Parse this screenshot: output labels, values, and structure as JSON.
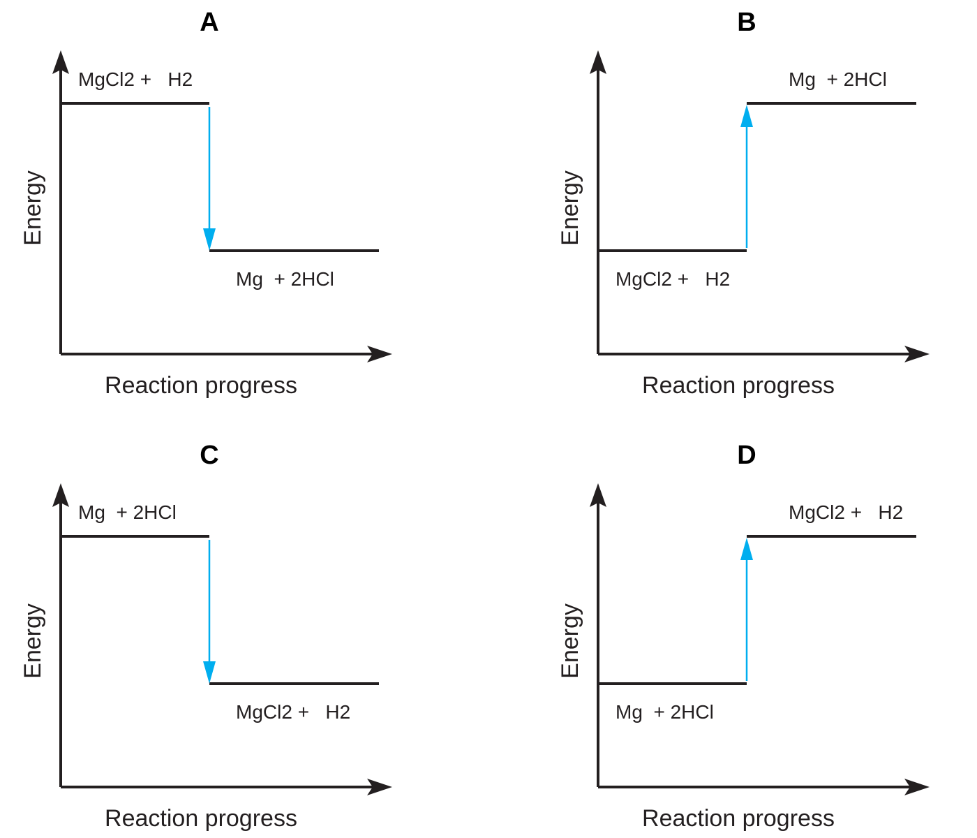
{
  "colors": {
    "axis": "#231f20",
    "arrow": "#00aeef"
  },
  "axis_labels": {
    "y": "Energy",
    "x": "Reaction progress"
  },
  "panels": [
    {
      "letter": "A",
      "direction": "down",
      "upper_label": "MgCl2 +   H2",
      "lower_label": "Mg  + 2HCl"
    },
    {
      "letter": "B",
      "direction": "up",
      "upper_label": "Mg  + 2HCl",
      "lower_label": "MgCl2 +   H2"
    },
    {
      "letter": "C",
      "direction": "down",
      "upper_label": "Mg  + 2HCl",
      "lower_label": "MgCl2 +   H2"
    },
    {
      "letter": "D",
      "direction": "up",
      "upper_label": "MgCl2 +   H2",
      "lower_label": "Mg  + 2HCl"
    }
  ]
}
